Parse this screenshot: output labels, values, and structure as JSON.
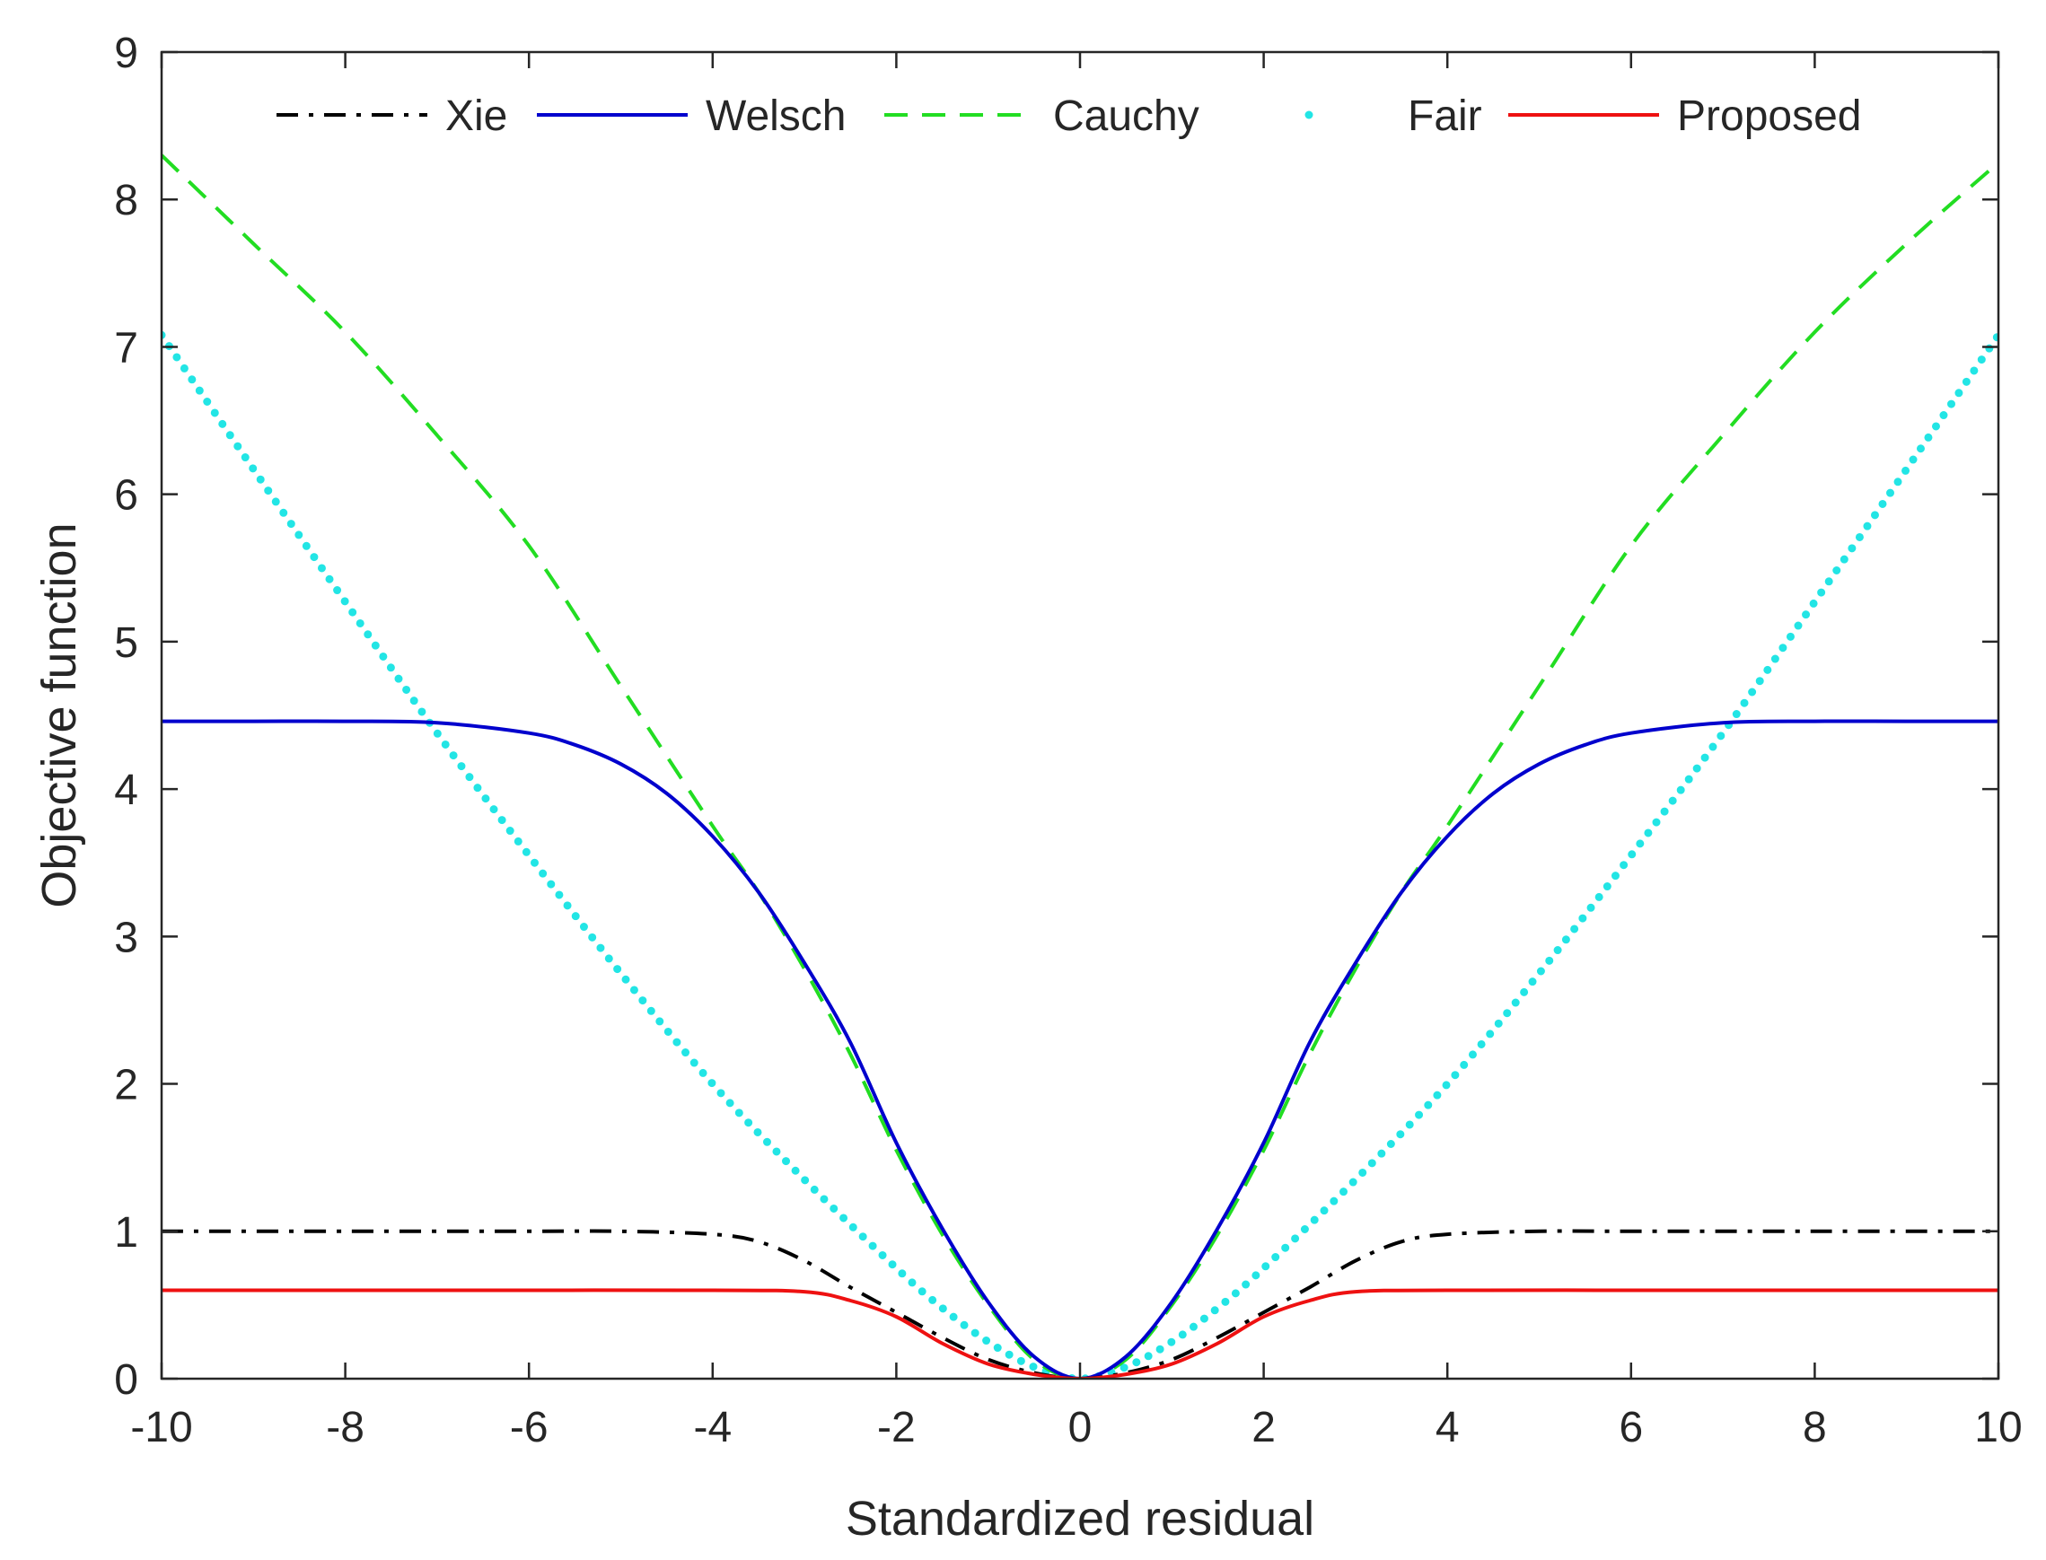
{
  "chart_data": {
    "type": "line",
    "title": "",
    "xlabel": "Standardized residual",
    "ylabel": "Objective function",
    "xlim": [
      -10,
      10
    ],
    "ylim": [
      0,
      9
    ],
    "xticks": [
      -10,
      -8,
      -6,
      -4,
      -2,
      0,
      2,
      4,
      6,
      8,
      10
    ],
    "yticks": [
      0,
      1,
      2,
      3,
      4,
      5,
      6,
      7,
      8,
      9
    ],
    "xtick_labels": [
      "-10",
      "-8",
      "-6",
      "-4",
      "-2",
      "0",
      "2",
      "4",
      "6",
      "8",
      "10"
    ],
    "ytick_labels": [
      "0",
      "1",
      "2",
      "3",
      "4",
      "5",
      "6",
      "7",
      "8",
      "9"
    ],
    "grid": false,
    "legend_position": "top, inside plot, single row",
    "series": [
      {
        "name": "Xie",
        "color": "#000000",
        "style": "dashdot",
        "x": [
          -10,
          -8,
          -6,
          -5,
          -4,
          -3.5,
          -3,
          -2.5,
          -2,
          -1.5,
          -1,
          -0.5,
          0,
          0.5,
          1,
          1.5,
          2,
          2.5,
          3,
          3.5,
          4,
          5,
          6,
          8,
          10
        ],
        "y": [
          1.0,
          1.0,
          1.0,
          1.0,
          0.98,
          0.93,
          0.8,
          0.62,
          0.45,
          0.28,
          0.13,
          0.04,
          0.0,
          0.04,
          0.13,
          0.28,
          0.45,
          0.62,
          0.8,
          0.93,
          0.98,
          1.0,
          1.0,
          1.0,
          1.0
        ]
      },
      {
        "name": "Welsch",
        "color": "#0000cd",
        "style": "solid",
        "x": [
          -10,
          -9,
          -8,
          -7,
          -6,
          -5.5,
          -5,
          -4.5,
          -4,
          -3.5,
          -3,
          -2.5,
          -2,
          -1.5,
          -1,
          -0.5,
          0,
          0.5,
          1,
          1.5,
          2,
          2.5,
          3,
          3.5,
          4,
          4.5,
          5,
          5.5,
          6,
          7,
          8,
          9,
          10
        ],
        "y": [
          4.46,
          4.46,
          4.46,
          4.45,
          4.38,
          4.3,
          4.17,
          3.97,
          3.68,
          3.3,
          2.82,
          2.28,
          1.6,
          1.02,
          0.52,
          0.15,
          0.0,
          0.15,
          0.52,
          1.02,
          1.6,
          2.28,
          2.82,
          3.3,
          3.68,
          3.97,
          4.17,
          4.3,
          4.38,
          4.45,
          4.46,
          4.46,
          4.46
        ]
      },
      {
        "name": "Cauchy",
        "color": "#22dd22",
        "style": "dashed",
        "x": [
          -10,
          -9,
          -8,
          -7,
          -6,
          -5,
          -4,
          -3.5,
          -3,
          -2.5,
          -2,
          -1.5,
          -1,
          -0.5,
          0,
          0.5,
          1,
          1.5,
          2,
          2.5,
          3,
          3.5,
          4,
          5,
          6,
          7,
          8,
          9,
          10
        ],
        "y": [
          8.3,
          7.7,
          7.1,
          6.4,
          5.65,
          4.7,
          3.75,
          3.3,
          2.78,
          2.2,
          1.55,
          0.98,
          0.5,
          0.13,
          0.0,
          0.13,
          0.5,
          0.98,
          1.55,
          2.2,
          2.78,
          3.3,
          3.75,
          4.7,
          5.65,
          6.4,
          7.1,
          7.7,
          8.25
        ]
      },
      {
        "name": "Fair",
        "color": "#22e5e5",
        "style": "dotted",
        "x": [
          -10,
          -9,
          -8,
          -7,
          -6,
          -5,
          -4,
          -3,
          -2,
          -1.5,
          -1,
          -0.5,
          0,
          0.5,
          1,
          1.5,
          2,
          3,
          4,
          5,
          6,
          7,
          8,
          9,
          10
        ],
        "y": [
          7.08,
          6.17,
          5.27,
          4.38,
          3.55,
          2.75,
          2.0,
          1.35,
          0.75,
          0.48,
          0.25,
          0.08,
          0.0,
          0.08,
          0.25,
          0.48,
          0.75,
          1.35,
          2.0,
          2.75,
          3.55,
          4.38,
          5.27,
          6.17,
          7.08
        ]
      },
      {
        "name": "Proposed",
        "color": "#ee1111",
        "style": "solid",
        "x": [
          -10,
          -8,
          -6,
          -4,
          -3,
          -2.5,
          -2,
          -1.5,
          -1,
          -0.5,
          0,
          0.5,
          1,
          1.5,
          2,
          2.5,
          3,
          4,
          6,
          8,
          10
        ],
        "y": [
          0.6,
          0.6,
          0.6,
          0.6,
          0.59,
          0.53,
          0.42,
          0.24,
          0.1,
          0.03,
          0.0,
          0.03,
          0.1,
          0.24,
          0.42,
          0.53,
          0.59,
          0.6,
          0.6,
          0.6,
          0.6
        ]
      }
    ]
  }
}
